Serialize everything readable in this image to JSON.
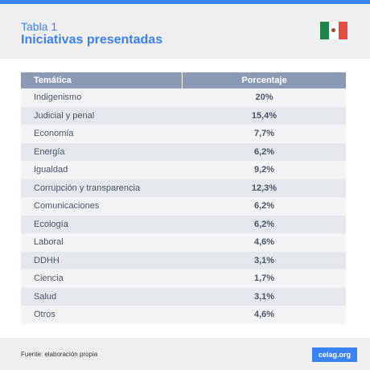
{
  "header": {
    "label": "Tabla 1",
    "title": "Iniciativas presentadas"
  },
  "table": {
    "columns": [
      "Temática",
      "Porcentaje"
    ],
    "rows": [
      {
        "tema": "Indigenismo",
        "pct": "20%"
      },
      {
        "tema": "Judicial y penal",
        "pct": "15,4%"
      },
      {
        "tema": "Economía",
        "pct": "7,7%"
      },
      {
        "tema": "Energía",
        "pct": "6,2%"
      },
      {
        "tema": "Igualdad",
        "pct": "9,2%"
      },
      {
        "tema": "Corrupción y transparencia",
        "pct": "12,3%"
      },
      {
        "tema": "Comunicaciones",
        "pct": "6,2%"
      },
      {
        "tema": "Ecología",
        "pct": "6,2%"
      },
      {
        "tema": "Laboral",
        "pct": "4,6%"
      },
      {
        "tema": "DDHH",
        "pct": "3,1%"
      },
      {
        "tema": "Ciencia",
        "pct": "1,7%"
      },
      {
        "tema": "Salud",
        "pct": "3,1%"
      },
      {
        "tema": "Otros",
        "pct": "4,6%"
      }
    ]
  },
  "footer": {
    "source": "Fuente: elaboración propia",
    "logo": "celag.org"
  },
  "colors": {
    "accent": "#3b82f6",
    "header_row": "#8a9ab5"
  }
}
